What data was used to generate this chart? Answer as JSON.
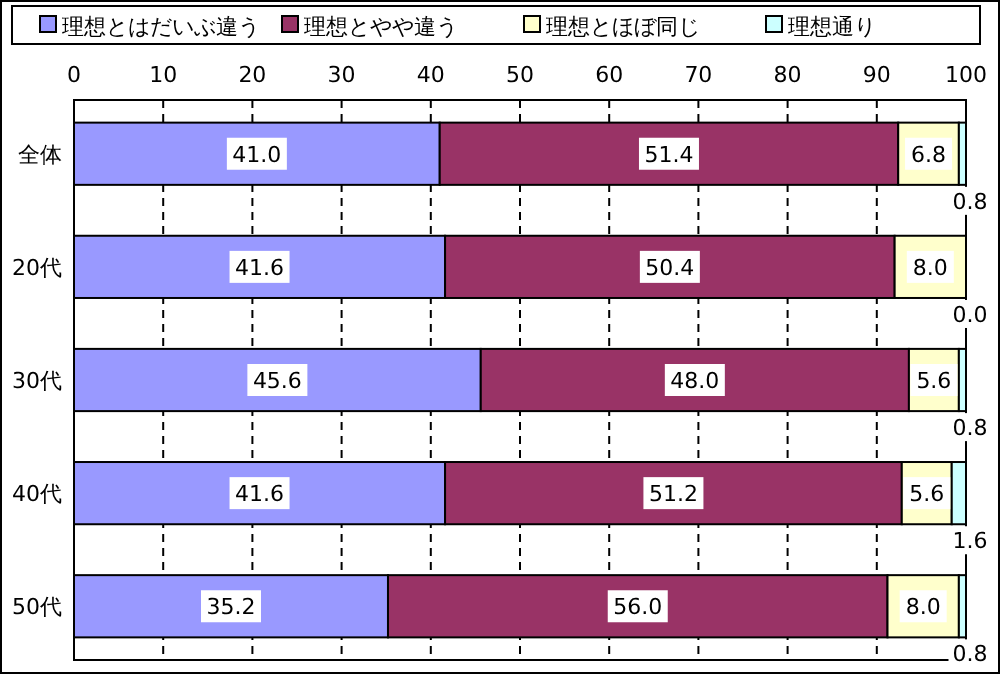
{
  "chart_data": {
    "type": "bar",
    "orientation": "horizontal",
    "stacked": true,
    "categories": [
      "全体",
      "20代",
      "30代",
      "40代",
      "50代"
    ],
    "series": [
      {
        "name": "理想とはだいぶ違う",
        "color": "#9999ff",
        "values": [
          41.0,
          41.6,
          45.6,
          41.6,
          35.2
        ],
        "value_labels": [
          "41.0",
          "41.6",
          "45.6",
          "41.6",
          "35.2"
        ]
      },
      {
        "name": "理想とやや違う",
        "color": "#993366",
        "values": [
          51.4,
          50.4,
          48.0,
          51.2,
          56.0
        ],
        "value_labels": [
          "51.4",
          "50.4",
          "48.0",
          "51.2",
          "56.0"
        ]
      },
      {
        "name": "理想とほぼ同じ",
        "color": "#ffffcc",
        "values": [
          6.8,
          8.0,
          5.6,
          5.6,
          8.0
        ],
        "value_labels": [
          "6.8",
          "8.0",
          "5.6",
          "5.6",
          "8.0"
        ]
      },
      {
        "name": "理想通り",
        "color": "#ccffff",
        "values": [
          0.8,
          0.0,
          0.8,
          1.6,
          0.8
        ],
        "value_labels": [
          "0.8",
          "0.0",
          "0.8",
          "1.6",
          "0.8"
        ]
      }
    ],
    "xlim": [
      0,
      100
    ],
    "xticks": [
      0,
      10,
      20,
      30,
      40,
      50,
      60,
      70,
      80,
      90,
      100
    ],
    "grid": "x",
    "legend": "top"
  }
}
